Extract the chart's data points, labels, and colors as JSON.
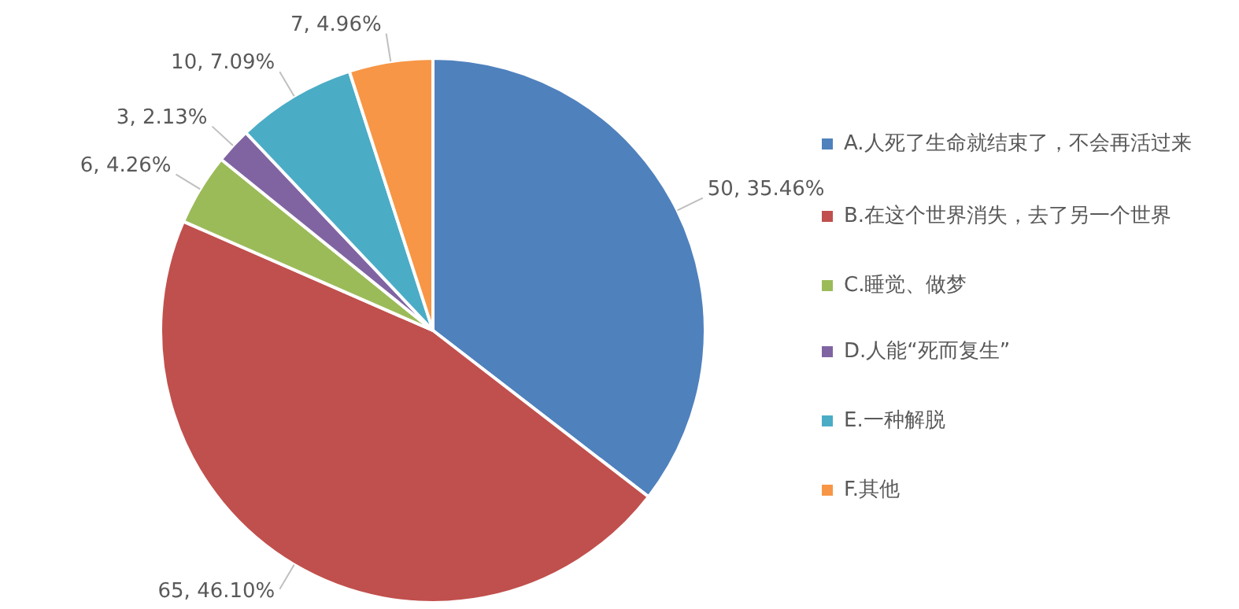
{
  "chart_data": {
    "type": "pie",
    "categories": [
      "A.人死了生命就结束了，不会再活过来",
      "B.在这个世界消失，去了另一个世界",
      "C.睡觉、做梦",
      "D.人能“死而复生”",
      "E.一种解脱",
      "F.其他"
    ],
    "values": [
      50,
      65,
      6,
      3,
      10,
      7
    ],
    "colors": [
      "#4f81bd",
      "#c0504d",
      "#9bbb59",
      "#8064a2",
      "#4bacc6",
      "#f79646"
    ],
    "value_labels": [
      "50, 35.46%",
      "65, 46.10%",
      "6, 4.26%",
      "3, 2.13%",
      "10, 7.09%",
      "7, 4.96%"
    ],
    "legend": "right"
  }
}
